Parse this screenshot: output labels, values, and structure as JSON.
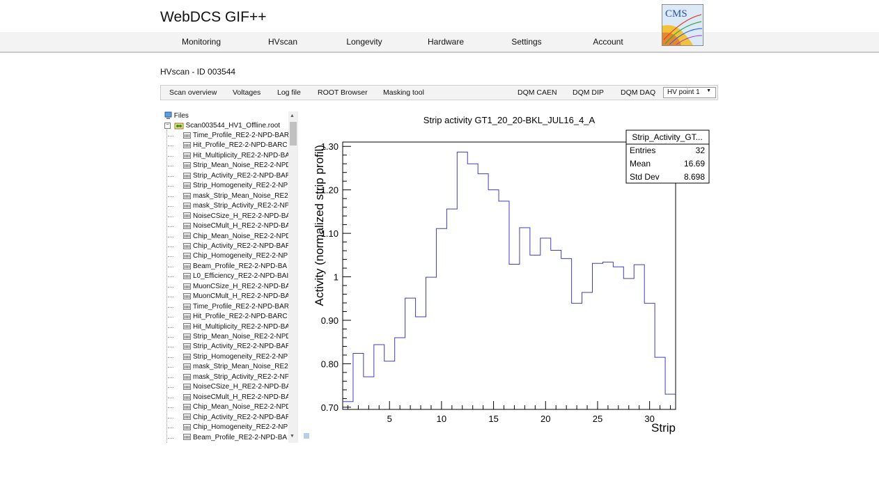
{
  "header": {
    "title": "WebDCS GIF++",
    "logo_text": "CMS"
  },
  "nav": {
    "items": [
      "Monitoring",
      "HVscan",
      "Longevity",
      "Hardware",
      "Settings",
      "Account"
    ]
  },
  "page": {
    "heading": "HVscan - ID 003544"
  },
  "toolbar": {
    "left_buttons": [
      "Scan overview",
      "Voltages",
      "Log file",
      "ROOT Browser",
      "Masking tool"
    ],
    "right_buttons": [
      "DQM CAEN",
      "DQM DIP",
      "DQM DAQ"
    ],
    "hv_select": "HV point 1"
  },
  "tree": {
    "root_label": "Files",
    "file_label": "Scan003544_HV1_Offline.root",
    "items": [
      "Time_Profile_RE2-2-NPD-BAR",
      "Hit_Profile_RE2-2-NPD-BARC",
      "Hit_Multiplicity_RE2-2-NPD-BA",
      "Strip_Mean_Noise_RE2-2-NPD",
      "Strip_Activity_RE2-2-NPD-BAR",
      "Strip_Homogeneity_RE2-2-NP",
      "mask_Strip_Mean_Noise_RE2",
      "mask_Strip_Activity_RE2-2-NP",
      "NoiseCSize_H_RE2-2-NPD-BA",
      "NoiseCMult_H_RE2-2-NPD-BA",
      "Chip_Mean_Noise_RE2-2-NPD",
      "Chip_Activity_RE2-2-NPD-BAR",
      "Chip_Homogeneity_RE2-2-NP",
      "Beam_Profile_RE2-2-NPD-BA",
      "L0_Efficiency_RE2-2-NPD-BAI",
      "MuonCSize_H_RE2-2-NPD-BA",
      "MuonCMult_H_RE2-2-NPD-BA",
      "Time_Profile_RE2-2-NPD-BAR",
      "Hit_Profile_RE2-2-NPD-BARC",
      "Hit_Multiplicity_RE2-2-NPD-BA",
      "Strip_Mean_Noise_RE2-2-NPD",
      "Strip_Activity_RE2-2-NPD-BAR",
      "Strip_Homogeneity_RE2-2-NP",
      "mask_Strip_Mean_Noise_RE2",
      "mask_Strip_Activity_RE2-2-NP",
      "NoiseCSize_H_RE2-2-NPD-BA",
      "NoiseCMult_H_RE2-2-NPD-BA",
      "Chip_Mean_Noise_RE2-2-NPD",
      "Chip_Activity_RE2-2-NPD-BAR",
      "Chip_Homogeneity_RE2-2-NP",
      "Beam_Profile_RE2-2-NPD-BA"
    ]
  },
  "stats": {
    "title": "Strip_Activity_GT...",
    "rows": [
      {
        "label": "Entries",
        "value": "32"
      },
      {
        "label": "Mean",
        "value": "16.69"
      },
      {
        "label": "Std Dev",
        "value": "8.698"
      }
    ]
  },
  "chart_data": {
    "type": "line",
    "style": "step-histogram",
    "title": "Strip activity GT1_20_20-BKL_JUL16_4_A",
    "xlabel": "Strip",
    "ylabel": "Activity (normalized strip profil)",
    "xlim": [
      0.5,
      32.5
    ],
    "ylim": [
      0.695,
      1.31
    ],
    "x_ticks": [
      5,
      10,
      15,
      20,
      25,
      30
    ],
    "y_ticks": [
      0.7,
      0.8,
      0.9,
      1.0,
      1.1,
      1.2,
      1.3
    ],
    "y_tick_labels": [
      "0.70",
      "0.80",
      "0.90",
      "1",
      "1.10",
      "1.20",
      "1.30"
    ],
    "series_color": "#3d3dbb",
    "series": [
      {
        "x": [
          1,
          2,
          3,
          4,
          5,
          6,
          7,
          8,
          9,
          10,
          11,
          12,
          13,
          14,
          15,
          16,
          17,
          18,
          19,
          20,
          21,
          22,
          23,
          24,
          25,
          26,
          27,
          28,
          29,
          30,
          31,
          32
        ],
        "values": [
          0.713,
          0.824,
          0.77,
          0.844,
          0.806,
          0.86,
          0.951,
          0.908,
          0.999,
          1.111,
          1.156,
          1.287,
          1.26,
          1.237,
          1.2,
          1.174,
          1.029,
          1.113,
          1.05,
          1.089,
          1.061,
          1.042,
          0.939,
          0.964,
          1.031,
          1.034,
          1.023,
          0.996,
          1.028,
          0.939,
          0.815,
          0.73
        ]
      }
    ]
  }
}
